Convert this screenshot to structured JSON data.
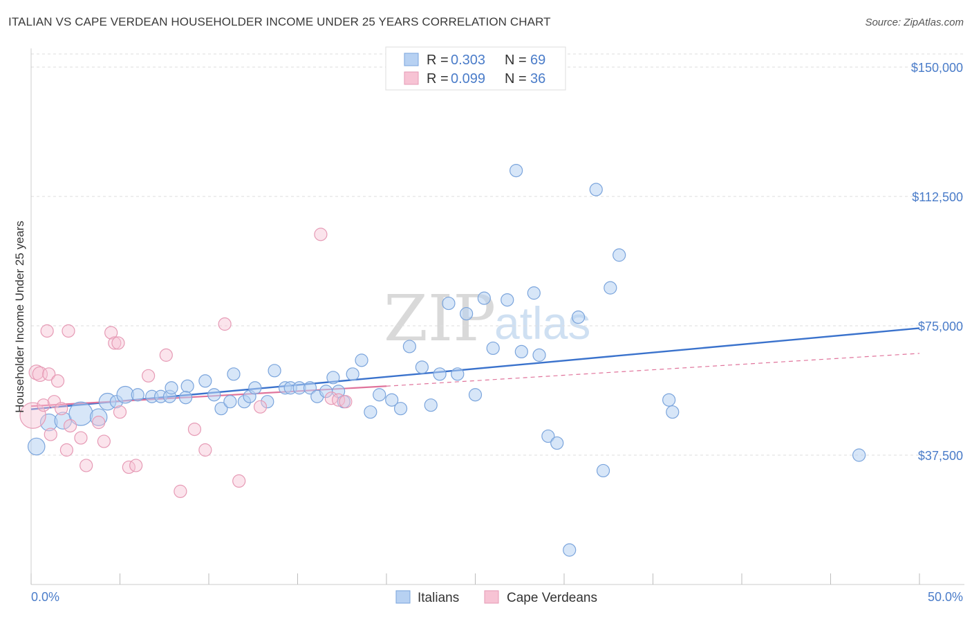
{
  "title": "ITALIAN VS CAPE VERDEAN HOUSEHOLDER INCOME UNDER 25 YEARS CORRELATION CHART",
  "source": "Source: ZipAtlas.com",
  "watermark": {
    "zip": "ZIP",
    "atlas": "atlas"
  },
  "colors": {
    "blue": "#4f86d6",
    "blue_fill": "#b7d1f2",
    "pink": "#e0739b",
    "pink_fill": "#f7c3d4",
    "axis_text": "#4a7cc9"
  },
  "legend_top": [
    {
      "r_label": "R = ",
      "r_value": "0.303",
      "n_label": "N = ",
      "n_value": "69"
    },
    {
      "r_label": "R = ",
      "r_value": "0.099",
      "n_label": "N = ",
      "n_value": "36"
    }
  ],
  "legend_bottom": [
    "Italians",
    "Cape Verdeans"
  ],
  "chart_data": {
    "type": "scatter",
    "title": "ITALIAN VS CAPE VERDEAN HOUSEHOLDER INCOME UNDER 25 YEARS CORRELATION CHART",
    "xlabel": "",
    "ylabel": "Householder Income Under 25 years",
    "xlim": [
      0,
      50
    ],
    "ylim": [
      0,
      157000
    ],
    "x_tick_labels": [
      "0.0%",
      "50.0%"
    ],
    "y_ticks": [
      37500,
      75000,
      112500,
      150000
    ],
    "y_tick_labels": [
      "$37,500",
      "$75,000",
      "$112,500",
      "$150,000"
    ],
    "grid": "horizontal dashed",
    "legend_position": "top-center",
    "series": [
      {
        "name": "Italians",
        "points": [
          [
            0.3,
            40000,
            14
          ],
          [
            1.0,
            47000,
            14
          ],
          [
            1.8,
            47500,
            14
          ],
          [
            2.8,
            49500,
            20
          ],
          [
            3.8,
            48500,
            14
          ],
          [
            4.3,
            53000,
            14
          ],
          [
            4.8,
            53000,
            10
          ],
          [
            5.3,
            55000,
            14
          ],
          [
            6.0,
            55000,
            10
          ],
          [
            6.8,
            54500,
            10
          ],
          [
            7.3,
            54500,
            10
          ],
          [
            7.8,
            54500,
            10
          ],
          [
            7.9,
            57000,
            10
          ],
          [
            8.8,
            57500,
            10
          ],
          [
            8.7,
            54200,
            10
          ],
          [
            9.8,
            59000,
            10
          ],
          [
            10.3,
            55000,
            10
          ],
          [
            10.7,
            51000,
            10
          ],
          [
            11.2,
            53000,
            10
          ],
          [
            11.4,
            61000,
            10
          ],
          [
            12.0,
            53000,
            10
          ],
          [
            12.3,
            54500,
            10
          ],
          [
            12.6,
            57000,
            10
          ],
          [
            13.3,
            53000,
            10
          ],
          [
            13.7,
            62000,
            10
          ],
          [
            14.3,
            57000,
            10
          ],
          [
            14.6,
            57000,
            10
          ],
          [
            15.1,
            57000,
            10
          ],
          [
            15.7,
            57000,
            10
          ],
          [
            16.1,
            54500,
            10
          ],
          [
            16.6,
            56000,
            10
          ],
          [
            17.0,
            60000,
            10
          ],
          [
            17.3,
            56000,
            10
          ],
          [
            17.6,
            53000,
            10
          ],
          [
            18.1,
            61000,
            10
          ],
          [
            18.6,
            65000,
            10
          ],
          [
            19.1,
            50000,
            10
          ],
          [
            19.6,
            55000,
            10
          ],
          [
            20.3,
            53500,
            10
          ],
          [
            20.8,
            51000,
            10
          ],
          [
            21.3,
            69000,
            10
          ],
          [
            22.0,
            63000,
            10
          ],
          [
            22.5,
            52000,
            10
          ],
          [
            23.0,
            61000,
            10
          ],
          [
            23.5,
            81500,
            10
          ],
          [
            24.0,
            61000,
            10
          ],
          [
            24.5,
            78500,
            10
          ],
          [
            25.0,
            55000,
            10
          ],
          [
            25.5,
            83000,
            10
          ],
          [
            26.0,
            68500,
            10
          ],
          [
            26.8,
            82500,
            10
          ],
          [
            27.3,
            120000,
            10
          ],
          [
            27.6,
            67500,
            10
          ],
          [
            28.3,
            84500,
            10
          ],
          [
            28.6,
            66500,
            10
          ],
          [
            29.1,
            43000,
            10
          ],
          [
            29.6,
            41000,
            10
          ],
          [
            30.8,
            77500,
            10
          ],
          [
            30.3,
            10000,
            10
          ],
          [
            31.8,
            114500,
            10
          ],
          [
            32.2,
            33000,
            10
          ],
          [
            32.6,
            86000,
            10
          ],
          [
            33.1,
            95500,
            10
          ],
          [
            35.9,
            53500,
            10
          ],
          [
            36.1,
            50000,
            10
          ],
          [
            46.6,
            37500,
            10
          ]
        ],
        "trend": {
          "x": [
            0,
            50
          ],
          "y": [
            50800,
            74300
          ]
        }
      },
      {
        "name": "Cape Verdeans",
        "points": [
          [
            0.1,
            49000,
            22
          ],
          [
            0.3,
            61500,
            12
          ],
          [
            0.5,
            61000,
            12
          ],
          [
            0.7,
            52000,
            10
          ],
          [
            0.9,
            73500,
            10
          ],
          [
            1.0,
            61000,
            10
          ],
          [
            1.1,
            43500,
            10
          ],
          [
            1.3,
            53000,
            10
          ],
          [
            1.5,
            59000,
            10
          ],
          [
            1.7,
            51000,
            10
          ],
          [
            2.0,
            39000,
            10
          ],
          [
            2.1,
            73500,
            10
          ],
          [
            2.2,
            46000,
            10
          ],
          [
            2.8,
            42500,
            10
          ],
          [
            3.1,
            34500,
            10
          ],
          [
            3.8,
            47000,
            10
          ],
          [
            4.1,
            41500,
            10
          ],
          [
            4.5,
            73000,
            10
          ],
          [
            4.7,
            70000,
            10
          ],
          [
            4.9,
            70000,
            10
          ],
          [
            5.0,
            50000,
            10
          ],
          [
            5.5,
            34000,
            10
          ],
          [
            5.9,
            34500,
            10
          ],
          [
            6.6,
            60500,
            10
          ],
          [
            7.6,
            66500,
            10
          ],
          [
            8.4,
            27000,
            10
          ],
          [
            9.2,
            45000,
            10
          ],
          [
            9.8,
            39000,
            10
          ],
          [
            10.9,
            75500,
            10
          ],
          [
            11.7,
            30000,
            10
          ],
          [
            12.9,
            51500,
            10
          ],
          [
            16.3,
            101500,
            10
          ],
          [
            16.9,
            54000,
            10
          ],
          [
            17.3,
            53500,
            10
          ],
          [
            17.7,
            53000,
            10
          ]
        ],
        "trend": {
          "x": [
            0,
            20
          ],
          "y": [
            51700,
            57500
          ]
        },
        "trend_extension": {
          "x": [
            20,
            50
          ],
          "y": [
            57500,
            67000
          ]
        }
      }
    ]
  }
}
